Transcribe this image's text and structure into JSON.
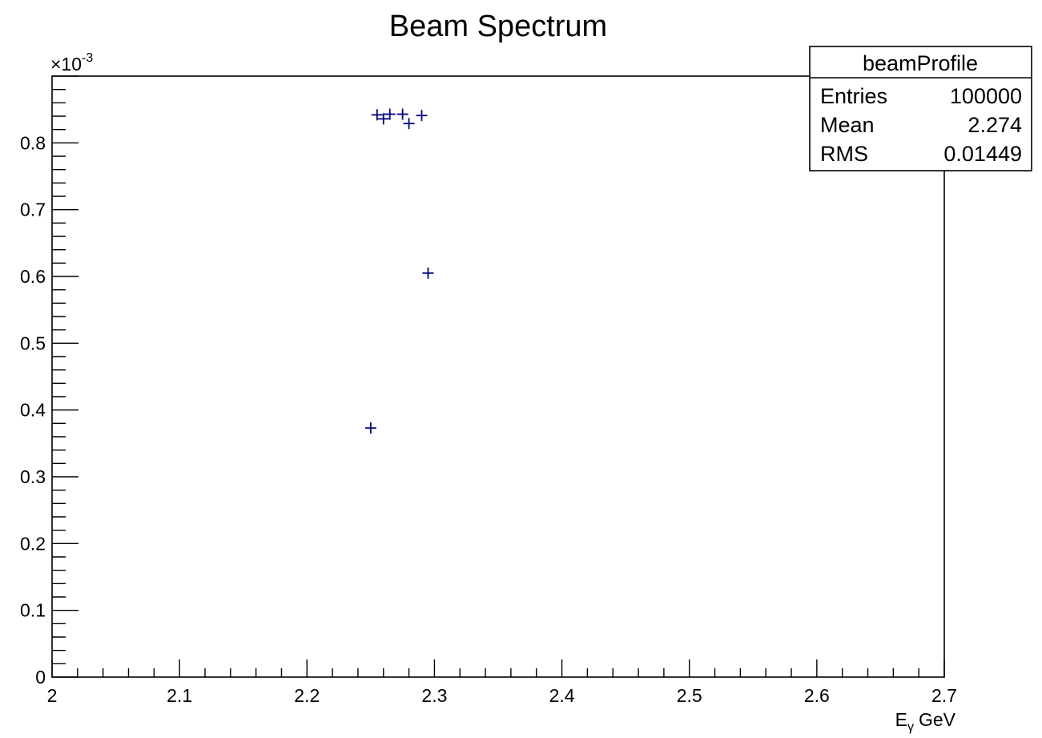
{
  "chart_data": {
    "type": "scatter",
    "title": "Beam Spectrum",
    "xlabel": {
      "main": "E",
      "sub": "γ",
      "unit": "GeV"
    },
    "ylabel": "",
    "y_exponent": {
      "base": "×10",
      "power": "-3"
    },
    "xlim": [
      2.0,
      2.7
    ],
    "ylim": [
      0.0,
      0.9
    ],
    "x_ticks": [
      2.0,
      2.1,
      2.2,
      2.3,
      2.4,
      2.5,
      2.6,
      2.7
    ],
    "x_tick_labels": [
      "2",
      "2.1",
      "2.2",
      "2.3",
      "2.4",
      "2.5",
      "2.6",
      "2.7"
    ],
    "y_ticks": [
      0.0,
      0.1,
      0.2,
      0.3,
      0.4,
      0.5,
      0.6,
      0.7,
      0.8
    ],
    "y_tick_labels": [
      "0",
      "0.1",
      "0.2",
      "0.3",
      "0.4",
      "0.5",
      "0.6",
      "0.7",
      "0.8"
    ],
    "grid": false,
    "marker": "plus",
    "marker_color": "#000080",
    "series": [
      {
        "points": [
          {
            "x": 2.25,
            "y": 0.373
          },
          {
            "x": 2.255,
            "y": 0.842
          },
          {
            "x": 2.26,
            "y": 0.836
          },
          {
            "x": 2.265,
            "y": 0.843
          },
          {
            "x": 2.275,
            "y": 0.843
          },
          {
            "x": 2.28,
            "y": 0.829
          },
          {
            "x": 2.29,
            "y": 0.841
          },
          {
            "x": 2.295,
            "y": 0.605
          }
        ]
      }
    ],
    "stats_box": {
      "title": "beamProfile",
      "rows": [
        {
          "label": "Entries",
          "value": "100000"
        },
        {
          "label": "Mean",
          "value": "2.274"
        },
        {
          "label": "RMS",
          "value": "0.01449"
        }
      ]
    }
  }
}
